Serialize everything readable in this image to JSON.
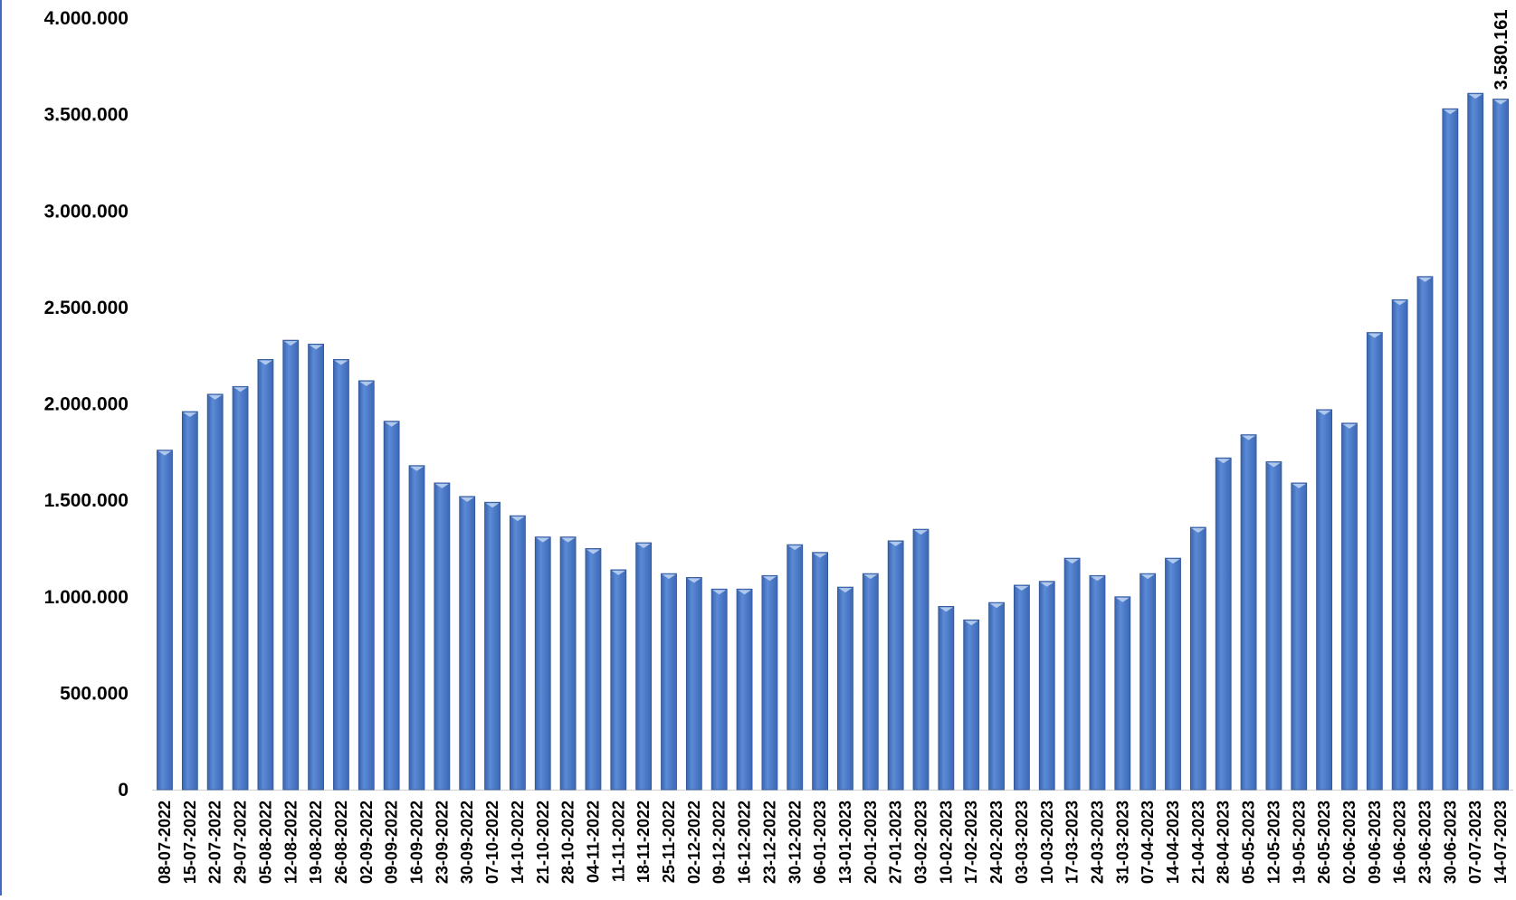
{
  "chart_data": {
    "type": "bar",
    "title": "",
    "xlabel": "",
    "ylabel": "",
    "ylim": [
      0,
      4000000
    ],
    "yticks": [
      0,
      500000,
      1000000,
      1500000,
      2000000,
      2500000,
      3000000,
      3500000,
      4000000
    ],
    "ytick_labels": [
      "0",
      "500.000",
      "1.000.000",
      "1.500.000",
      "2.000.000",
      "2.500.000",
      "3.000.000",
      "3.500.000",
      "4.000.000"
    ],
    "grid": false,
    "legend": "none",
    "bar_color": "#4a78c8",
    "bar_edge_color": "#2f5597",
    "categories": [
      "08-07-2022",
      "15-07-2022",
      "22-07-2022",
      "29-07-2022",
      "05-08-2022",
      "12-08-2022",
      "19-08-2022",
      "26-08-2022",
      "02-09-2022",
      "09-09-2022",
      "16-09-2022",
      "23-09-2022",
      "30-09-2022",
      "07-10-2022",
      "14-10-2022",
      "21-10-2022",
      "28-10-2022",
      "04-11-2022",
      "11-11-2022",
      "18-11-2022",
      "25-11-2022",
      "02-12-2022",
      "09-12-2022",
      "16-12-2022",
      "23-12-2022",
      "30-12-2022",
      "06-01-2023",
      "13-01-2023",
      "20-01-2023",
      "27-01-2023",
      "03-02-2023",
      "10-02-2023",
      "17-02-2023",
      "24-02-2023",
      "03-03-2023",
      "10-03-2023",
      "17-03-2023",
      "24-03-2023",
      "31-03-2023",
      "07-04-2023",
      "14-04-2023",
      "21-04-2023",
      "28-04-2023",
      "05-05-2023",
      "12-05-2023",
      "19-05-2023",
      "26-05-2023",
      "02-06-2023",
      "09-06-2023",
      "16-06-2023",
      "23-06-2023",
      "30-06-2023",
      "07-07-2023",
      "14-07-2023"
    ],
    "values": [
      1760000,
      1960000,
      2050000,
      2090000,
      2230000,
      2330000,
      2310000,
      2230000,
      2120000,
      1910000,
      1680000,
      1590000,
      1520000,
      1490000,
      1420000,
      1310000,
      1310000,
      1250000,
      1140000,
      1280000,
      1120000,
      1100000,
      1040000,
      1040000,
      1110000,
      1270000,
      1230000,
      1050000,
      1120000,
      1290000,
      1350000,
      950000,
      880000,
      970000,
      1060000,
      1080000,
      1200000,
      1110000,
      1000000,
      1120000,
      1200000,
      1360000,
      1720000,
      1840000,
      1700000,
      1590000,
      1970000,
      1900000,
      2370000,
      2540000,
      2660000,
      3530000,
      3610000,
      3580161
    ],
    "data_labels": [
      {
        "category": "14-07-2023",
        "text": "3.580.161"
      }
    ]
  }
}
